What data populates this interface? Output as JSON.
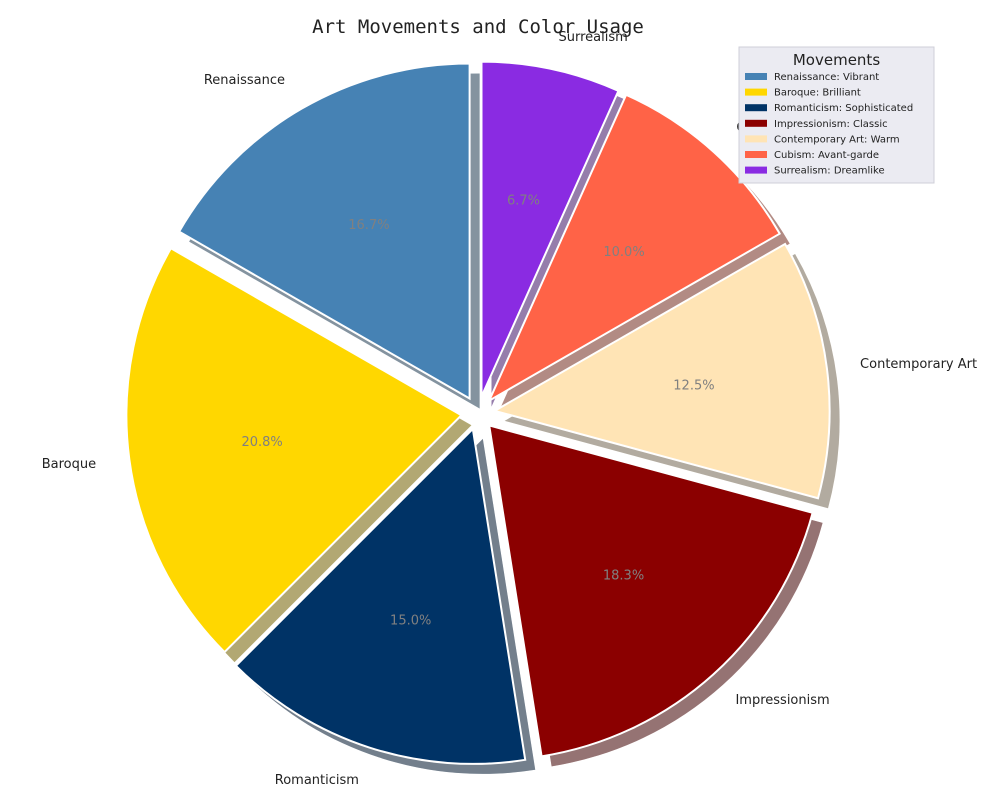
{
  "chart_data": {
    "type": "pie",
    "title": "Art Movements and Color Usage",
    "legend": {
      "title": "Movements",
      "placement": "top-right"
    },
    "grid": false,
    "exploded": true,
    "shadow": true,
    "slices": [
      {
        "label": "Renaissance",
        "value": 16.7,
        "pct_label": "16.7%",
        "color": "#4682b4",
        "legend_label": "Renaissance: Vibrant"
      },
      {
        "label": "Baroque",
        "value": 20.8,
        "pct_label": "20.8%",
        "color": "#ffd700",
        "legend_label": "Baroque: Brilliant"
      },
      {
        "label": "Romanticism",
        "value": 15.0,
        "pct_label": "15.0%",
        "color": "#003366",
        "legend_label": "Romanticism: Sophisticated"
      },
      {
        "label": "Impressionism",
        "value": 18.3,
        "pct_label": "18.3%",
        "color": "#8b0000",
        "legend_label": "Impressionism: Classic"
      },
      {
        "label": "Contemporary Art",
        "value": 12.5,
        "pct_label": "12.5%",
        "color": "#ffe4b5",
        "legend_label": "Contemporary Art: Warm"
      },
      {
        "label": "Cubism",
        "value": 10.0,
        "pct_label": "10.0%",
        "color": "#ff6347",
        "legend_label": "Cubism: Avant-garde"
      },
      {
        "label": "Surrealism",
        "value": 6.7,
        "pct_label": "6.7%",
        "color": "#8a2be2",
        "legend_label": "Surrealism: Dreamlike"
      }
    ]
  }
}
